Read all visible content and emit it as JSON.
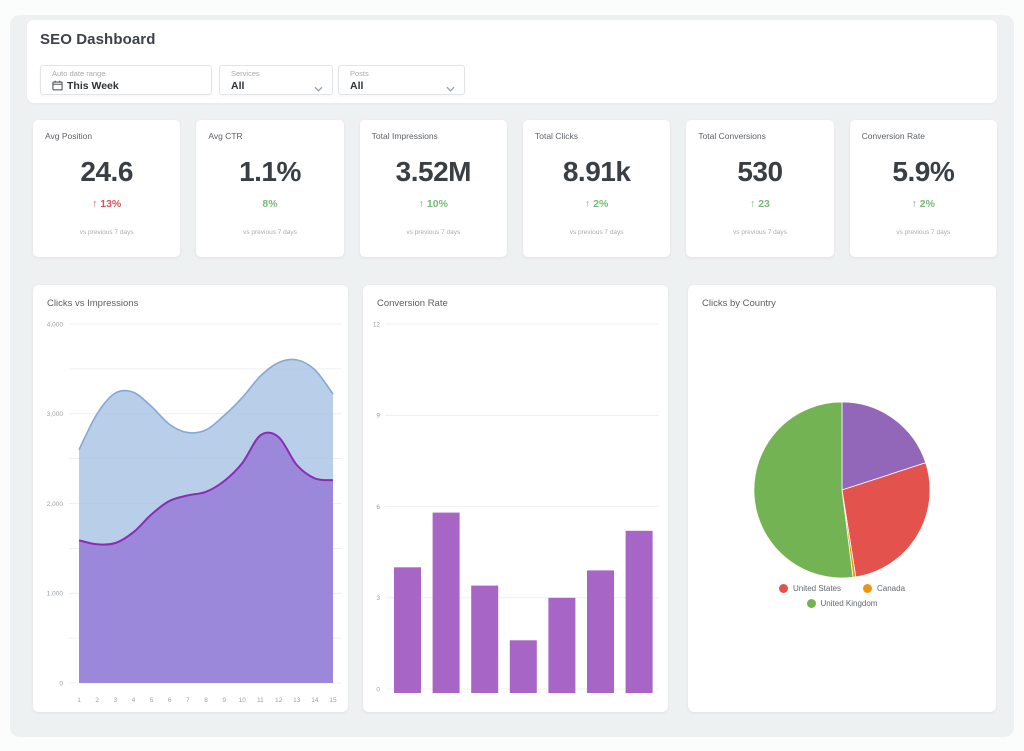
{
  "header": {
    "title": "SEO Dashboard",
    "filters": [
      {
        "label": "Auto date range",
        "value": "This Week",
        "icon": "calendar-icon"
      },
      {
        "label": "Services",
        "value": "All",
        "icon": "chevron-down-icon"
      },
      {
        "label": "Posts",
        "value": "All",
        "icon": "chevron-down-icon"
      }
    ]
  },
  "kpis": {
    "cards": [
      {
        "label": "Avg Position",
        "value": "24.6",
        "delta": "↑ 13%",
        "delta_color": "#d4555f",
        "note": "vs previous 7 days"
      },
      {
        "label": "Avg CTR",
        "value": "1.1%",
        "delta": "8%",
        "delta_color": "#7cb87a",
        "note": "vs previous 7 days"
      },
      {
        "label": "Total Impressions",
        "value": "3.52M",
        "delta": "↑ 10%",
        "delta_color": "#74bd74",
        "note": "vs previous 7 days"
      },
      {
        "label": "Total Clicks",
        "value": "8.91k",
        "delta": "↑ 2%",
        "delta_color": "#74bd74",
        "note": "vs previous 7 days"
      },
      {
        "label": "Total Conversions",
        "value": "530",
        "delta": "↑ 23",
        "delta_color": "#74bd74",
        "note": "vs previous 7 days"
      },
      {
        "label": "Conversion Rate",
        "value": "5.9%",
        "delta": "↑ 2%",
        "delta_color": "#74bd74",
        "note": "vs previous 7 days"
      }
    ]
  },
  "chart_data": [
    {
      "type": "area",
      "title": "Clicks vs Impressions",
      "x_labels": [
        "1",
        "2",
        "3",
        "4",
        "5",
        "6",
        "7",
        "8",
        "9",
        "10",
        "11",
        "12",
        "13",
        "14",
        "15"
      ],
      "ylim": [
        0,
        4000
      ],
      "y_grid_step": 500,
      "y_ticks": [
        {
          "value": 4000,
          "label": "4,000"
        },
        {
          "value": 3000,
          "label": "3,000"
        },
        {
          "value": 2000,
          "label": "2,000"
        },
        {
          "value": 1000,
          "label": "1,000"
        },
        {
          "value": 0,
          "label": "0"
        }
      ],
      "series": [
        {
          "name": "Impressions",
          "line_color": "#86a8d8",
          "fill_color": "rgba(160,190,226,0.75)",
          "line_width": 1.6,
          "values": [
            2600,
            3000,
            3230,
            3240,
            3080,
            2880,
            2790,
            2820,
            2980,
            3180,
            3420,
            3570,
            3600,
            3490,
            3220
          ]
        },
        {
          "name": "Clicks",
          "line_color": "#8d2bb4",
          "fill_color": "rgba(146,110,214,0.72)",
          "line_width": 2,
          "values": [
            1590,
            1545,
            1560,
            1680,
            1880,
            2030,
            2090,
            2130,
            2250,
            2450,
            2760,
            2740,
            2430,
            2280,
            2260
          ]
        }
      ]
    },
    {
      "type": "bar",
      "title": "Conversion Rate",
      "values": [
        4.0,
        5.8,
        3.4,
        1.6,
        3.0,
        3.9,
        5.2
      ],
      "ylim": [
        0,
        12
      ],
      "y_ticks": [
        12,
        9,
        6,
        3,
        0
      ],
      "bar_color": "#a765c5"
    },
    {
      "type": "pie",
      "title": "Clicks by Country",
      "slices": [
        {
          "label": "",
          "value": 20,
          "color": "#9266b8"
        },
        {
          "label": "United States",
          "value": 27.5,
          "color": "#e3524d"
        },
        {
          "label": "Canada",
          "value": 0.5,
          "color": "#f0930d"
        },
        {
          "label": "United Kingdom",
          "value": 52,
          "color": "#74b354"
        }
      ],
      "legend_rows": [
        [
          {
            "label": "United States",
            "color": "#e3524d"
          },
          {
            "label": "Canada",
            "color": "#f0930d"
          }
        ],
        [
          {
            "label": "United Kingdom",
            "color": "#74b354"
          }
        ]
      ]
    }
  ]
}
